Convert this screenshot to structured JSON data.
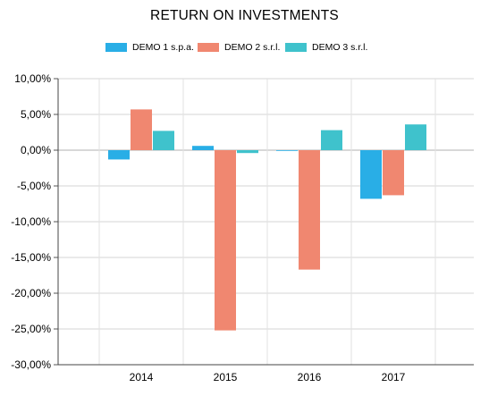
{
  "chart_data": {
    "type": "bar",
    "title": "RETURN ON INVESTMENTS",
    "xlabel": "",
    "ylabel": "",
    "categories": [
      "2014",
      "2015",
      "2016",
      "2017"
    ],
    "series": [
      {
        "name": "DEMO 1 s.p.a.",
        "color": "#29aee6",
        "values": [
          -1.3,
          0.6,
          -0.1,
          -6.8
        ]
      },
      {
        "name": "DEMO 2 s.r.l.",
        "color": "#f08770",
        "values": [
          5.7,
          -25.2,
          -16.7,
          -6.3
        ]
      },
      {
        "name": "DEMO 3 s.r.l.",
        "color": "#3fc2cc",
        "values": [
          2.7,
          -0.4,
          2.8,
          3.6
        ]
      }
    ],
    "ylim": [
      -30,
      10
    ],
    "yticks": [
      "10,00%",
      "5,00%",
      "0,00%",
      "-5,00%",
      "-10,00%",
      "-15,00%",
      "-20,00%",
      "-25,00%",
      "-30,00%"
    ],
    "grid": true,
    "legend": "top-center"
  }
}
